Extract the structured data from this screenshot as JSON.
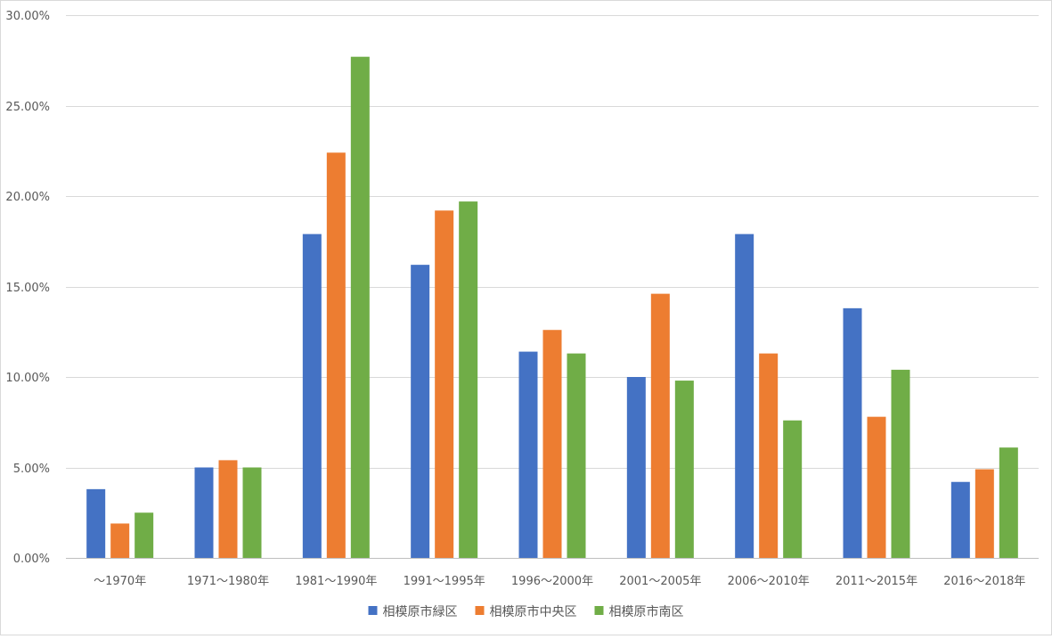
{
  "chart_data": {
    "type": "bar",
    "title": "",
    "xlabel": "",
    "ylabel": "",
    "ylim": [
      0,
      0.3
    ],
    "y_ticks": [
      {
        "value": 0.0,
        "label": "0.00%"
      },
      {
        "value": 0.05,
        "label": "5.00%"
      },
      {
        "value": 0.1,
        "label": "10.00%"
      },
      {
        "value": 0.15,
        "label": "15.00%"
      },
      {
        "value": 0.2,
        "label": "20.00%"
      },
      {
        "value": 0.25,
        "label": "25.00%"
      },
      {
        "value": 0.3,
        "label": "30.00%"
      }
    ],
    "grid": true,
    "legend_position": "bottom-center",
    "categories": [
      "～1970年",
      "1971～1980年",
      "1981～1990年",
      "1991～1995年",
      "1996～2000年",
      "2001～2005年",
      "2006～2010年",
      "2011～2015年",
      "2016～2018年"
    ],
    "series": [
      {
        "name": "相模原市緑区",
        "color": "#4472C4",
        "values": [
          0.038,
          0.05,
          0.179,
          0.162,
          0.114,
          0.1,
          0.179,
          0.138,
          0.042
        ]
      },
      {
        "name": "相模原市中央区",
        "color": "#ED7D31",
        "values": [
          0.019,
          0.054,
          0.224,
          0.192,
          0.126,
          0.146,
          0.113,
          0.078,
          0.049
        ]
      },
      {
        "name": "相模原市南区",
        "color": "#70AD47",
        "values": [
          0.025,
          0.05,
          0.277,
          0.197,
          0.113,
          0.098,
          0.076,
          0.104,
          0.061
        ]
      }
    ]
  },
  "colors": {
    "grid": "#D9D9D9",
    "axis": "#BFBFBF",
    "text": "#595959"
  }
}
